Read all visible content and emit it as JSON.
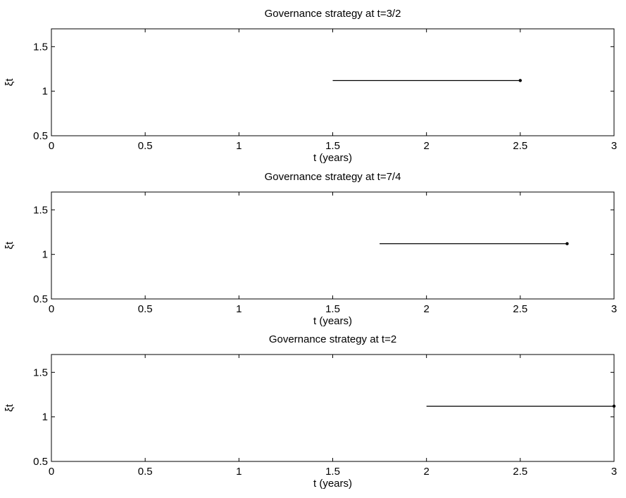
{
  "chart_data": [
    {
      "type": "line",
      "title": "Governance strategy at t=3/2",
      "xlabel": "t (years)",
      "ylabel": "ξt",
      "xlim": [
        0,
        3
      ],
      "ylim": [
        0.5,
        1.7
      ],
      "xticks": [
        0,
        0.5,
        1,
        1.5,
        2,
        2.5,
        3
      ],
      "xtick_labels": [
        "0",
        "0.5",
        "1",
        "1.5",
        "2",
        "2.5",
        "3"
      ],
      "yticks": [
        0.5,
        1,
        1.5
      ],
      "ytick_labels": [
        "0.5",
        "1",
        "1.5"
      ],
      "grid": false,
      "series": [
        {
          "x": [
            1.5,
            2.5
          ],
          "y": [
            1.12,
            1.12
          ],
          "endpoint_marker": true
        }
      ]
    },
    {
      "type": "line",
      "title": "Governance strategy at t=7/4",
      "xlabel": "t (years)",
      "ylabel": "ξt",
      "xlim": [
        0,
        3
      ],
      "ylim": [
        0.5,
        1.7
      ],
      "xticks": [
        0,
        0.5,
        1,
        1.5,
        2,
        2.5,
        3
      ],
      "xtick_labels": [
        "0",
        "0.5",
        "1",
        "1.5",
        "2",
        "2.5",
        "3"
      ],
      "yticks": [
        0.5,
        1,
        1.5
      ],
      "ytick_labels": [
        "0.5",
        "1",
        "1.5"
      ],
      "grid": false,
      "series": [
        {
          "x": [
            1.75,
            2.75
          ],
          "y": [
            1.12,
            1.12
          ],
          "endpoint_marker": true
        }
      ]
    },
    {
      "type": "line",
      "title": "Governance strategy at t=2",
      "xlabel": "t (years)",
      "ylabel": "ξt",
      "xlim": [
        0,
        3
      ],
      "ylim": [
        0.5,
        1.7
      ],
      "xticks": [
        0,
        0.5,
        1,
        1.5,
        2,
        2.5,
        3
      ],
      "xtick_labels": [
        "0",
        "0.5",
        "1",
        "1.5",
        "2",
        "2.5",
        "3"
      ],
      "yticks": [
        0.5,
        1,
        1.5
      ],
      "ytick_labels": [
        "0.5",
        "1",
        "1.5"
      ],
      "grid": false,
      "series": [
        {
          "x": [
            2,
            3
          ],
          "y": [
            1.12,
            1.12
          ],
          "endpoint_marker": true
        }
      ]
    }
  ]
}
